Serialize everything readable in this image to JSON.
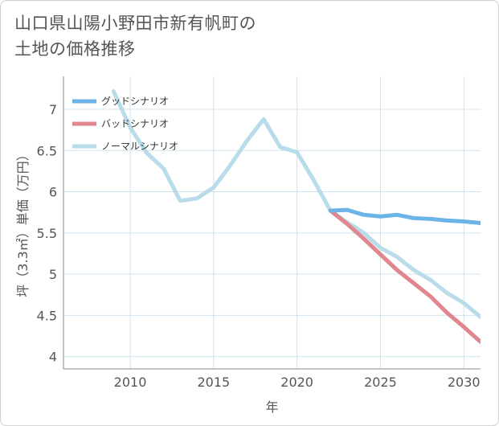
{
  "title_lines": [
    "山口県山陽小野田市新有帆町の",
    "土地の価格推移"
  ],
  "chart_data": {
    "type": "line",
    "title": "山口県山陽小野田市新有帆町の土地の価格推移",
    "xlabel": "年",
    "ylabel": "坪（3.3㎡）単価（万円）",
    "xlim": [
      2006,
      2031
    ],
    "ylim": [
      3.85,
      7.4
    ],
    "xticks": [
      2010,
      2015,
      2020,
      2025,
      2030
    ],
    "xtick_labels": [
      "2010",
      "2015",
      "2020",
      "2025",
      "2030"
    ],
    "yticks": [
      4,
      4.5,
      5,
      5.5,
      6,
      6.5,
      7
    ],
    "ytick_labels": [
      "4",
      "4.5",
      "5",
      "5.5",
      "6",
      "6.5",
      "7"
    ],
    "grid": true,
    "legend_position": "top-left",
    "series": [
      {
        "name": "グッドシナリオ",
        "color": "#6cb4e8",
        "x": [
          2022,
          2023,
          2024,
          2025,
          2026,
          2027,
          2028,
          2029,
          2030,
          2031
        ],
        "y": [
          5.77,
          5.78,
          5.72,
          5.7,
          5.72,
          5.68,
          5.67,
          5.65,
          5.64,
          5.62
        ]
      },
      {
        "name": "バッドシナリオ",
        "color": "#e0868e",
        "x": [
          2022,
          2023,
          2024,
          2025,
          2026,
          2027,
          2028,
          2029,
          2030,
          2031
        ],
        "y": [
          5.77,
          5.61,
          5.43,
          5.24,
          5.05,
          4.89,
          4.73,
          4.53,
          4.36,
          4.18
        ]
      },
      {
        "name": "ノーマルシナリオ",
        "color": "#b9dceb",
        "x": [
          2009,
          2010,
          2011,
          2012,
          2013,
          2014,
          2015,
          2016,
          2017,
          2018,
          2019,
          2020,
          2021,
          2022,
          2023,
          2024,
          2025,
          2026,
          2027,
          2028,
          2029,
          2030,
          2031
        ],
        "y": [
          7.22,
          6.78,
          6.47,
          6.28,
          5.89,
          5.92,
          6.05,
          6.32,
          6.62,
          6.88,
          6.54,
          6.48,
          6.14,
          5.77,
          5.63,
          5.5,
          5.32,
          5.21,
          5.05,
          4.93,
          4.77,
          4.65,
          4.48
        ]
      }
    ]
  }
}
